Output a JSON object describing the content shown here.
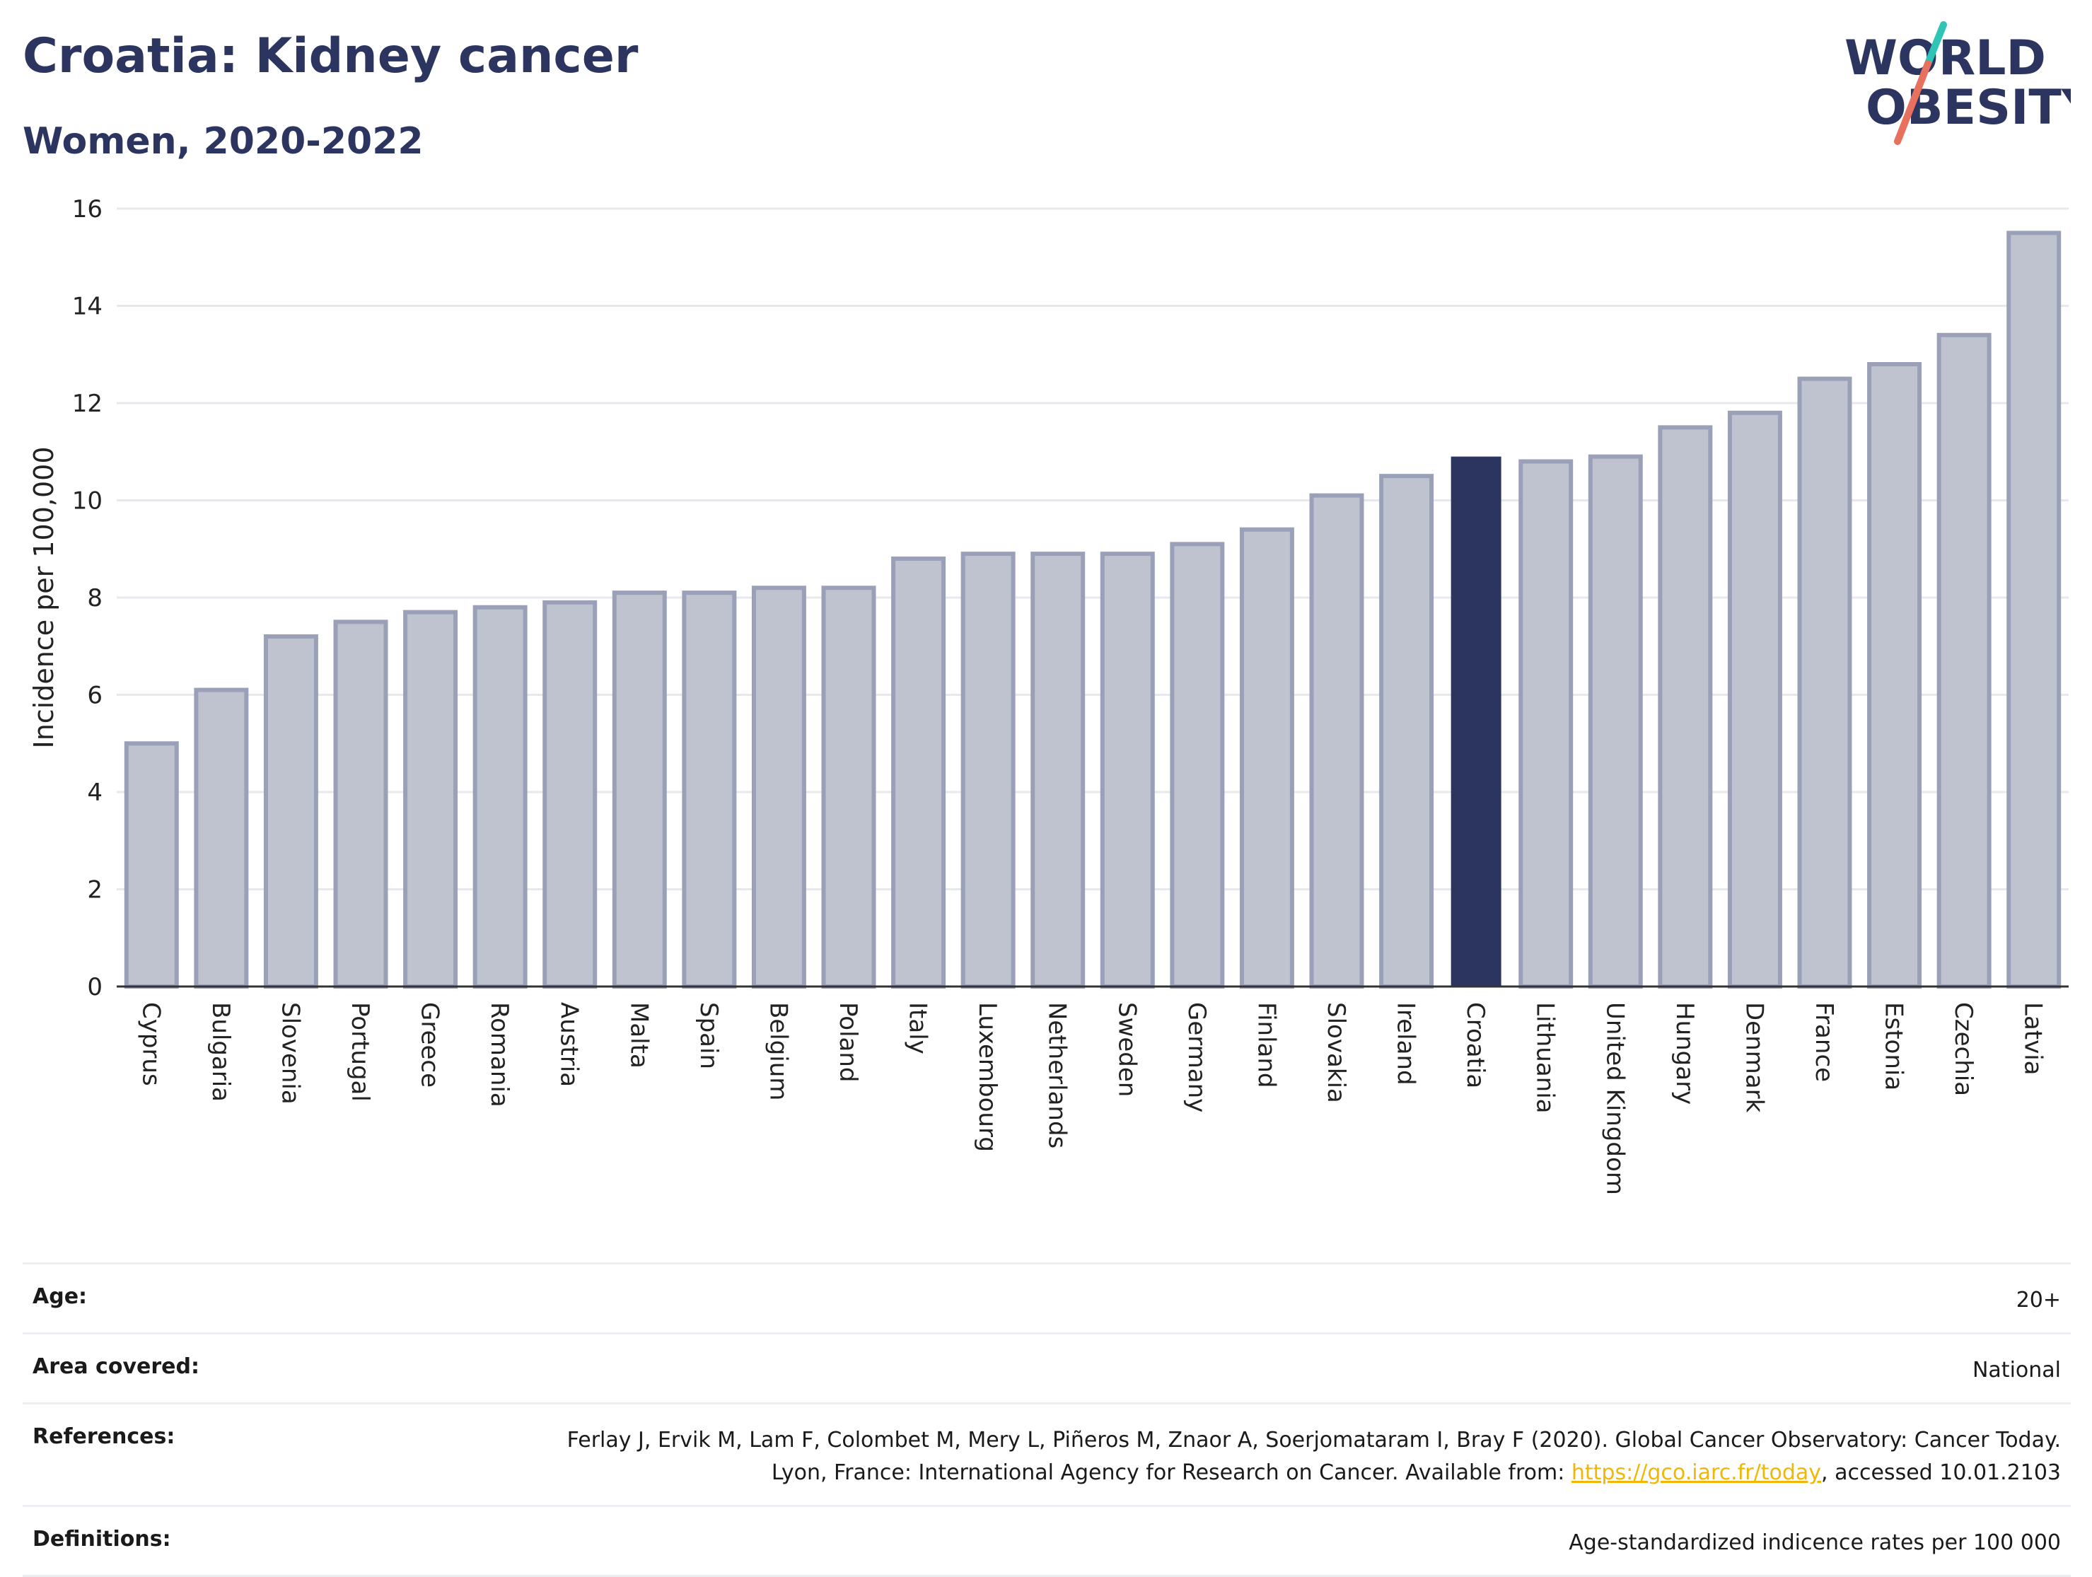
{
  "header": {
    "title": "Croatia: Kidney cancer",
    "subtitle": "Women, 2020-2022"
  },
  "logo": {
    "line1": "WORLD",
    "line2": "OBESITY",
    "accent_teal": "#2ec4b6",
    "accent_coral": "#e8705f",
    "text_color": "#2b3560"
  },
  "chart_data": {
    "type": "bar",
    "title": "Croatia: Kidney cancer",
    "subtitle": "Women, 2020-2022",
    "xlabel": "",
    "ylabel": "Incidence per 100,000",
    "ylim": [
      0,
      16
    ],
    "yticks": [
      0,
      2,
      4,
      6,
      8,
      10,
      12,
      14,
      16
    ],
    "grid": true,
    "highlight": "Croatia",
    "colors": {
      "bar": "#bfc3d0",
      "bar_border": "#9aa0b8",
      "highlight": "#2b3560",
      "grid": "#e6e8ee"
    },
    "categories": [
      "Cyprus",
      "Bulgaria",
      "Slovenia",
      "Portugal",
      "Greece",
      "Romania",
      "Austria",
      "Malta",
      "Spain",
      "Belgium",
      "Poland",
      "Italy",
      "Luxembourg",
      "Netherlands",
      "Sweden",
      "Germany",
      "Finland",
      "Slovakia",
      "Ireland",
      "Croatia",
      "Lithuania",
      "United Kingdom",
      "Hungary",
      "Denmark",
      "France",
      "Estonia",
      "Czechia",
      "Latvia"
    ],
    "values": [
      5.0,
      6.1,
      7.2,
      7.5,
      7.7,
      7.8,
      7.9,
      8.1,
      8.1,
      8.2,
      8.2,
      8.8,
      8.9,
      8.9,
      8.9,
      9.1,
      9.4,
      10.1,
      10.5,
      10.9,
      10.8,
      10.9,
      11.5,
      11.8,
      12.5,
      12.8,
      13.4,
      15.5
    ]
  },
  "info": {
    "age_label": "Age:",
    "age_value": "20+",
    "area_label": "Area covered:",
    "area_value": "National",
    "references_label": "References:",
    "references_text_1": "Ferlay J, Ervik M, Lam F, Colombet M, Mery L, Piñeros M, Znaor A, Soerjomataram I, Bray F (2020). Global Cancer Observatory: Cancer Today. Lyon, France: International Agency for Research on Cancer. Available from: ",
    "references_link": "https://gco.iarc.fr/today",
    "references_text_2": ", accessed 10.01.2103",
    "definitions_label": "Definitions:",
    "definitions_value": "Age-standardized indicence rates per 100 000"
  }
}
